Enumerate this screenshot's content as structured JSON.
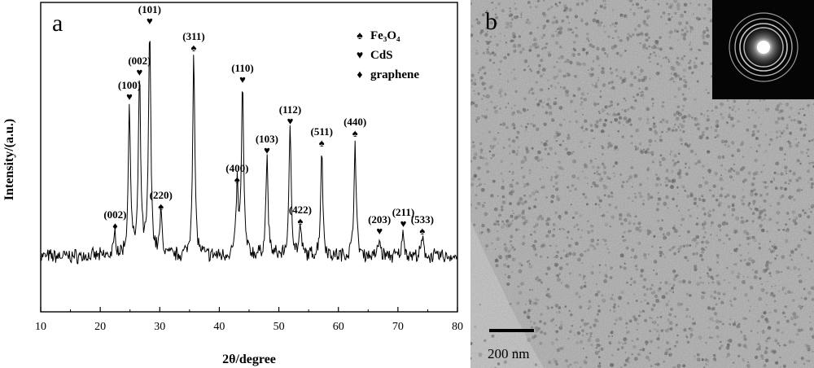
{
  "panel_a": {
    "label": "a",
    "chart_data": {
      "type": "line",
      "xlabel": "2θ/degree",
      "ylabel": "Intensity/(a.u.)",
      "xlim": [
        10,
        80
      ],
      "xticks": [
        10,
        20,
        30,
        40,
        50,
        60,
        70,
        80
      ],
      "yticks_shown": false,
      "grid": false,
      "legend_position": "top-right",
      "legend": [
        {
          "symbol": "♠",
          "label": "Fe₃O₄",
          "phase": "fe3o4"
        },
        {
          "symbol": "♥",
          "label": "CdS",
          "phase": "cds"
        },
        {
          "symbol": "♦",
          "label": "graphene",
          "phase": "graphene"
        }
      ],
      "baseline": 0.05,
      "peaks": [
        {
          "x": 22.5,
          "height": 0.09,
          "label": "(002)",
          "phase": "graphene"
        },
        {
          "x": 24.9,
          "height": 0.62,
          "label": "(100)",
          "phase": "cds"
        },
        {
          "x": 26.6,
          "height": 0.72,
          "label": "(002)",
          "phase": "cds"
        },
        {
          "x": 28.3,
          "height": 0.93,
          "label": "(101)",
          "phase": "cds"
        },
        {
          "x": 30.2,
          "height": 0.17,
          "label": "(220)",
          "phase": "fe3o4"
        },
        {
          "x": 35.7,
          "height": 0.82,
          "label": "(311)",
          "phase": "fe3o4"
        },
        {
          "x": 43.0,
          "height": 0.28,
          "label": "(400)",
          "phase": "fe3o4"
        },
        {
          "x": 43.9,
          "height": 0.69,
          "label": "(110)",
          "phase": "cds"
        },
        {
          "x": 48.0,
          "height": 0.4,
          "label": "(103)",
          "phase": "cds"
        },
        {
          "x": 51.9,
          "height": 0.52,
          "label": "(112)",
          "phase": "cds"
        },
        {
          "x": 53.6,
          "height": 0.11,
          "label": "(422)",
          "phase": "fe3o4"
        },
        {
          "x": 57.2,
          "height": 0.43,
          "label": "(511)",
          "phase": "fe3o4"
        },
        {
          "x": 62.8,
          "height": 0.47,
          "label": "(440)",
          "phase": "fe3o4"
        },
        {
          "x": 66.9,
          "height": 0.07,
          "label": "(203)",
          "phase": "cds"
        },
        {
          "x": 70.9,
          "height": 0.1,
          "label": "(211)",
          "phase": "cds"
        },
        {
          "x": 74.1,
          "height": 0.07,
          "label": "(533)",
          "phase": "fe3o4"
        }
      ]
    }
  },
  "panel_b": {
    "label": "b",
    "scale_bar_label": "200 nm",
    "colors": {
      "background": "#a9a9a9",
      "particles": "#5f5f5f"
    }
  }
}
